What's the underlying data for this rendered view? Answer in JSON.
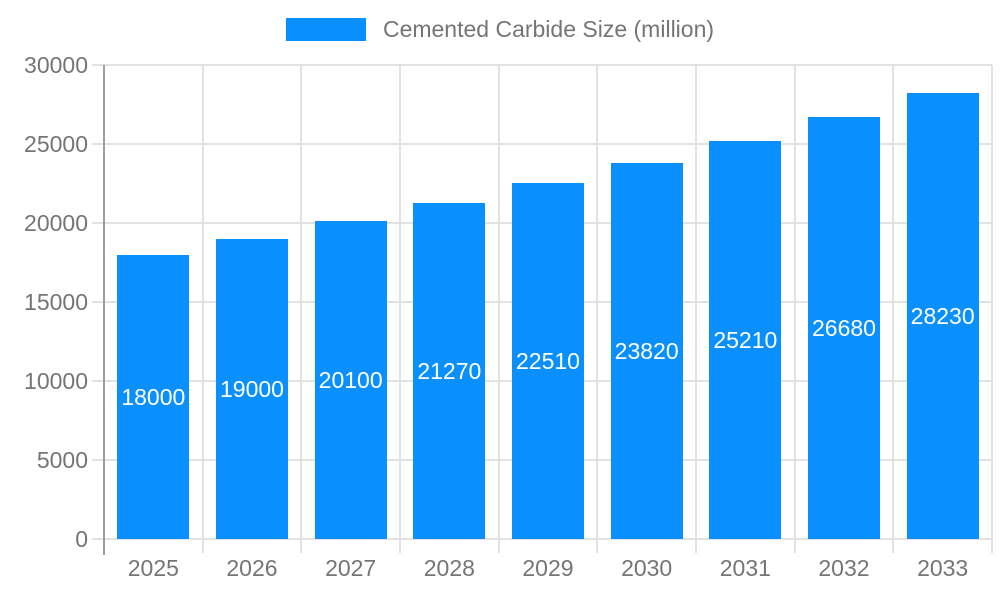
{
  "chart_data": {
    "type": "bar",
    "title": "",
    "legend": "Cemented Carbide Size (million)",
    "legend_position": "top-center",
    "categories": [
      "2025",
      "2026",
      "2027",
      "2028",
      "2029",
      "2030",
      "2031",
      "2032",
      "2033"
    ],
    "values": [
      18000,
      19000,
      20100,
      21270,
      22510,
      23820,
      25210,
      26680,
      28230
    ],
    "value_labels": [
      "18000",
      "19000",
      "20100",
      "21270",
      "22510",
      "23820",
      "25210",
      "26680",
      "28230"
    ],
    "value_label_placement": "inside-bar-centered",
    "xlabel": "",
    "ylabel": "",
    "ylim": [
      0,
      30000
    ],
    "yticks": [
      0,
      5000,
      10000,
      15000,
      20000,
      25000,
      30000
    ],
    "ytick_labels": [
      "0",
      "5000",
      "10000",
      "15000",
      "20000",
      "25000",
      "30000"
    ],
    "grid": true,
    "colors": {
      "bar": "#0a8fff",
      "bar_value_text": "#ffffff",
      "axis_text": "#757575",
      "gridline": "#e2e2e2",
      "axis_line": "#9e9e9e",
      "background": "#ffffff"
    }
  }
}
